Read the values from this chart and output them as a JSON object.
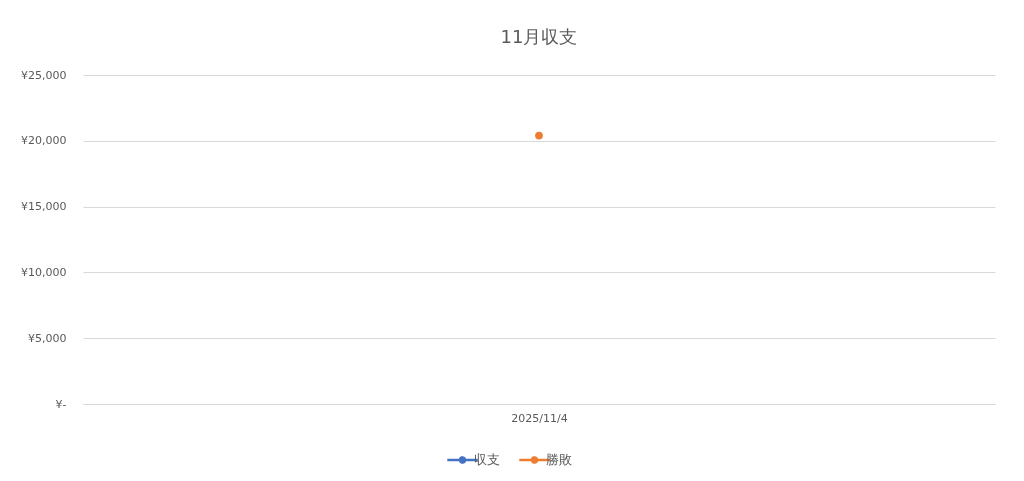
{
  "chart_data": {
    "type": "line",
    "title": "11月収支",
    "categories": [
      "2025/11/4"
    ],
    "series": [
      {
        "name": "収支",
        "color": "#4472c4",
        "values": [
          null
        ]
      },
      {
        "name": "勝敗",
        "color": "#ed7d31",
        "values": [
          20400
        ]
      }
    ],
    "ylim": [
      0,
      25000
    ],
    "yticks": [
      {
        "value": 0,
        "label": "¥-"
      },
      {
        "value": 5000,
        "label": "¥5,000"
      },
      {
        "value": 10000,
        "label": "¥10,000"
      },
      {
        "value": 15000,
        "label": "¥15,000"
      },
      {
        "value": 20000,
        "label": "¥20,000"
      },
      {
        "value": 25000,
        "label": "¥25,000"
      }
    ],
    "grid": "y",
    "legend": "bottom",
    "marker": "circle",
    "line_style": "solid"
  }
}
